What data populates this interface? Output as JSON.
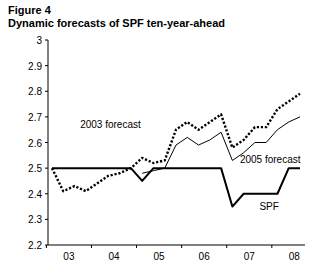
{
  "chart_data": {
    "type": "line",
    "title": "Figure 4",
    "subtitle": "Dynamic forecasts of SPF ten-year-ahead",
    "categories": [
      null,
      "03",
      null,
      null,
      null,
      "04",
      null,
      null,
      null,
      "05",
      null,
      null,
      null,
      "06",
      null,
      null,
      null,
      "07",
      null,
      null,
      null,
      "08",
      null
    ],
    "series": [
      {
        "name": "2003 forecast",
        "color": "#000000",
        "line_style": "dotted",
        "values": [
          2.5,
          2.41,
          2.43,
          2.41,
          2.44,
          2.47,
          2.48,
          2.5,
          2.54,
          2.52,
          2.53,
          2.65,
          2.68,
          2.65,
          2.68,
          2.71,
          2.58,
          2.61,
          2.66,
          2.66,
          2.73,
          2.76,
          2.79
        ]
      },
      {
        "name": "2005 forecast",
        "color": "#000000",
        "line_style": "solid",
        "values": [
          null,
          null,
          null,
          null,
          null,
          null,
          null,
          null,
          2.48,
          2.49,
          2.5,
          2.59,
          2.62,
          2.59,
          2.61,
          2.64,
          2.53,
          2.56,
          2.6,
          2.6,
          2.65,
          2.68,
          2.7
        ]
      },
      {
        "name": "SPF",
        "color": "#000000",
        "line_style": "solid",
        "values": [
          2.5,
          2.5,
          2.5,
          2.5,
          2.5,
          2.5,
          2.5,
          2.5,
          2.45,
          2.5,
          2.5,
          2.5,
          2.5,
          2.5,
          2.5,
          2.5,
          2.35,
          2.4,
          2.4,
          2.4,
          2.4,
          2.5,
          2.5
        ]
      }
    ],
    "ylim": [
      2.2,
      3
    ],
    "yticks": [
      2.2,
      2.3,
      2.4,
      2.5,
      2.6,
      2.7,
      2.8,
      2.9,
      3
    ],
    "grid": false
  }
}
